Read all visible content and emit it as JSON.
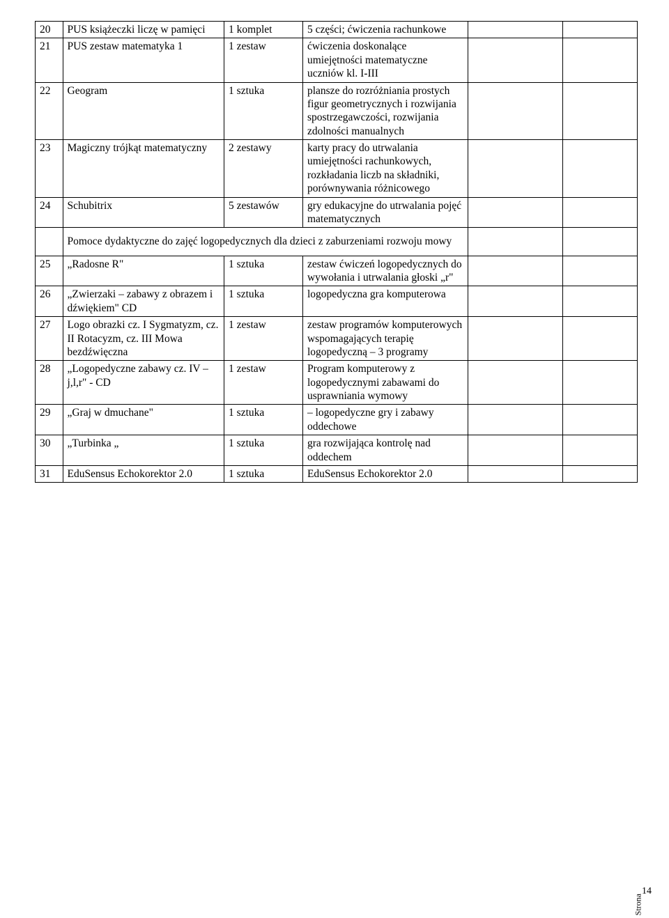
{
  "rows_top": [
    {
      "n": "20",
      "name": "PUS książeczki liczę w pamięci",
      "qty": "1 komplet",
      "desc": "5 części; ćwiczenia rachunkowe"
    },
    {
      "n": "21",
      "name": "PUS zestaw matematyka 1",
      "qty": "1 zestaw",
      "desc": "ćwiczenia doskonalące umiejętności matematyczne uczniów kl. I-III"
    },
    {
      "n": "22",
      "name": "Geogram",
      "qty": "1 sztuka",
      "desc": "plansze do rozróżniania prostych figur geometrycznych i rozwijania spostrzegawczości, rozwijania zdolności manualnych"
    },
    {
      "n": "23",
      "name": "Magiczny trójkąt matematyczny",
      "qty": "2 zestawy",
      "desc": "karty pracy do utrwalania umiejętności rachunkowych, rozkładania liczb na składniki, porównywania różnicowego"
    },
    {
      "n": "24",
      "name": "Schubitrix",
      "qty": "5 zestawów",
      "desc": "gry edukacyjne do utrwalania pojęć matematycznych"
    }
  ],
  "section_title": "Pomoce dydaktyczne do zajęć logopedycznych dla dzieci z zaburzeniami rozwoju mowy",
  "rows_bottom": [
    {
      "n": "25",
      "name": "„Radosne R\"",
      "qty": "1 sztuka",
      "desc": "zestaw ćwiczeń logopedycznych do wywołania i utrwalania głoski „r\""
    },
    {
      "n": "26",
      "name": "„Zwierzaki – zabawy z obrazem i dźwiękiem\" CD",
      "qty": "1 sztuka",
      "desc": "logopedyczna gra komputerowa"
    },
    {
      "n": "27",
      "name": "Logo obrazki cz. I Sygmatyzm, cz. II Rotacyzm, cz. III Mowa bezdźwięczna",
      "qty": "1 zestaw",
      "desc": "zestaw programów komputerowych wspomagających terapię logopedyczną – 3 programy"
    },
    {
      "n": "28",
      "name": "„Logopedyczne zabawy cz. IV – j,l,r\" - CD",
      "qty": "1 zestaw",
      "desc": "Program komputerowy z logopedycznymi zabawami do usprawniania wymowy"
    },
    {
      "n": "29",
      "name": "„Graj w dmuchane\"",
      "qty": "1 sztuka",
      "desc": "– logopedyczne gry i zabawy oddechowe"
    },
    {
      "n": "30",
      "name": "„Turbinka „",
      "qty": "1 sztuka",
      "desc": "gra rozwijająca kontrolę nad oddechem"
    },
    {
      "n": "31",
      "name": "EduSensus Echokorektor 2.0",
      "qty": "1 sztuka",
      "desc": "EduSensus Echokorektor 2.0"
    }
  ],
  "page_label": "Strona",
  "page_number": "14"
}
